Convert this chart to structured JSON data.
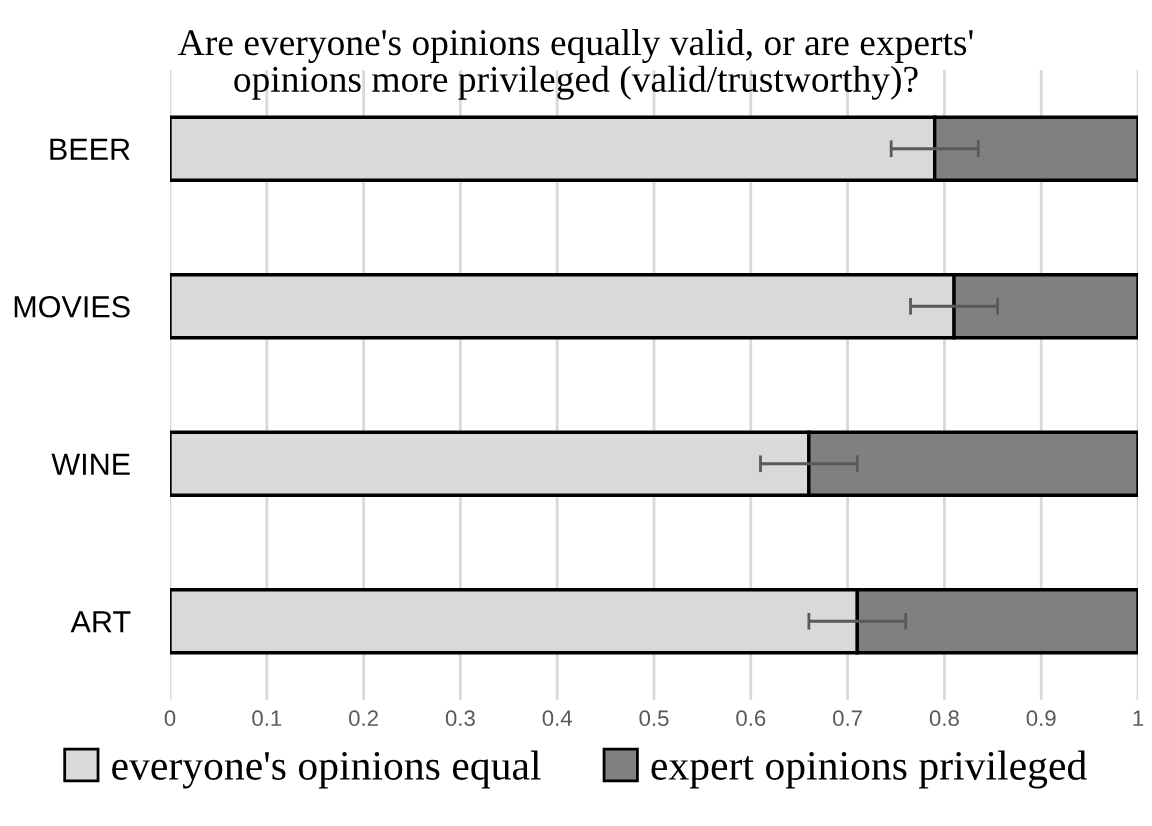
{
  "chart_data": {
    "type": "bar",
    "orientation": "horizontal",
    "stacked": true,
    "title": "Are everyone's opinions equally valid, or are experts'\nopinions more privileged (valid/trustworthy)?",
    "categories": [
      "BEER",
      "MOVIES",
      "WINE",
      "ART"
    ],
    "series": [
      {
        "name": "everyone's opinions equal",
        "color": "#d9d9d9",
        "values": [
          0.79,
          0.81,
          0.66,
          0.71
        ],
        "errors": [
          0.045,
          0.045,
          0.05,
          0.05
        ]
      },
      {
        "name": "expert opinions privileged",
        "color": "#808080",
        "values": [
          0.21,
          0.19,
          0.34,
          0.29
        ]
      }
    ],
    "xlim": [
      0,
      1
    ],
    "xticks": [
      0,
      0.1,
      0.2,
      0.3,
      0.4,
      0.5,
      0.6,
      0.7,
      0.8,
      0.9,
      1
    ],
    "grid": "x",
    "legend": "bottom"
  }
}
